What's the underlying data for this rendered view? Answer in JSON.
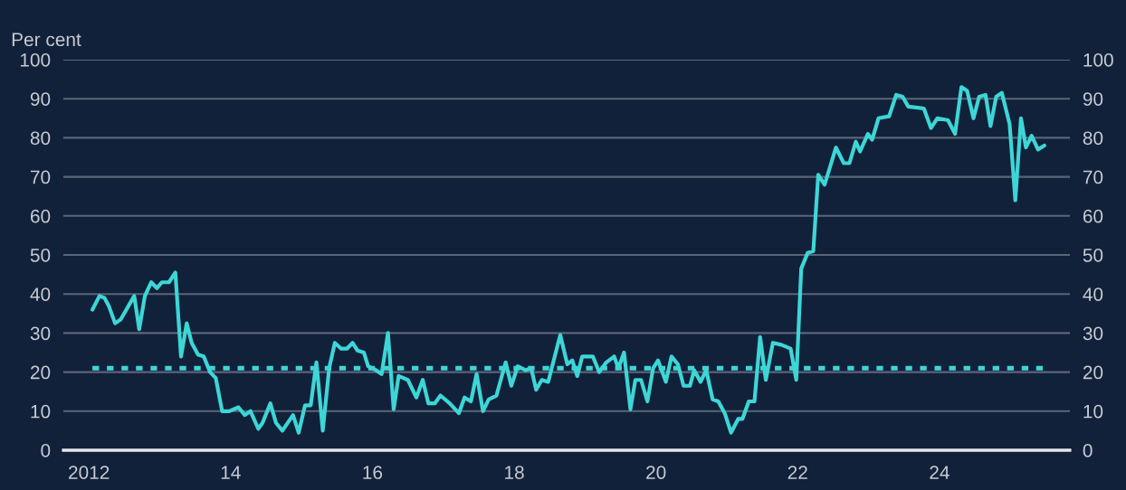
{
  "chart_data": {
    "type": "line",
    "ylabel": "Per cent",
    "xlim": [
      2011.64,
      2025.84
    ],
    "xticks": [
      {
        "value": 2012,
        "label": "2012"
      },
      {
        "value": 2014,
        "label": "14"
      },
      {
        "value": 2016,
        "label": "16"
      },
      {
        "value": 2018,
        "label": "18"
      },
      {
        "value": 2020,
        "label": "20"
      },
      {
        "value": 2022,
        "label": "22"
      },
      {
        "value": 2024,
        "label": "24"
      }
    ],
    "ylim": [
      0,
      100
    ],
    "yticks": [
      0,
      10,
      20,
      30,
      40,
      50,
      60,
      70,
      80,
      90,
      100
    ],
    "y2lim": [
      0,
      100
    ],
    "y2ticks": [
      0,
      10,
      20,
      30,
      40,
      50,
      60,
      70,
      80,
      90,
      100
    ],
    "grid": "y",
    "marker": "none",
    "line_style": "solid",
    "ref_lines": [
      {
        "axis": "y",
        "value": 21,
        "color": "#3dd6d6",
        "line_style": "dotted"
      }
    ],
    "series": [
      {
        "color": "#3dd6d6",
        "x": [
          2012.05,
          2012.15,
          2012.22,
          2012.28,
          2012.37,
          2012.45,
          2012.64,
          2012.71,
          2012.79,
          2012.88,
          2012.96,
          2013.03,
          2013.13,
          2013.22,
          2013.3,
          2013.38,
          2013.45,
          2013.54,
          2013.62,
          2013.71,
          2013.79,
          2013.88,
          2013.98,
          2014.11,
          2014.2,
          2014.28,
          2014.39,
          2014.45,
          2014.56,
          2014.64,
          2014.73,
          2014.88,
          2014.96,
          2015.05,
          2015.13,
          2015.21,
          2015.3,
          2015.39,
          2015.47,
          2015.56,
          2015.64,
          2015.72,
          2015.79,
          2015.88,
          2015.94,
          2016.05,
          2016.13,
          2016.22,
          2016.3,
          2016.37,
          2016.5,
          2016.62,
          2016.71,
          2016.79,
          2016.88,
          2016.96,
          2017.09,
          2017.22,
          2017.3,
          2017.39,
          2017.47,
          2017.56,
          2017.64,
          2017.75,
          2017.88,
          2017.96,
          2018.05,
          2018.16,
          2018.24,
          2018.31,
          2018.39,
          2018.48,
          2018.65,
          2018.75,
          2018.82,
          2018.89,
          2018.96,
          2019.11,
          2019.2,
          2019.3,
          2019.41,
          2019.47,
          2019.55,
          2019.64,
          2019.71,
          2019.79,
          2019.88,
          2019.96,
          2020.03,
          2020.14,
          2020.22,
          2020.31,
          2020.39,
          2020.48,
          2020.54,
          2020.63,
          2020.71,
          2020.8,
          2020.88,
          2020.97,
          2021.06,
          2021.16,
          2021.22,
          2021.31,
          2021.39,
          2021.47,
          2021.55,
          2021.65,
          2021.77,
          2021.9,
          2021.98,
          2022.05,
          2022.14,
          2022.22,
          2022.29,
          2022.38,
          2022.54,
          2022.65,
          2022.73,
          2022.82,
          2022.88,
          2022.99,
          2023.05,
          2023.14,
          2023.29,
          2023.39,
          2023.48,
          2023.56,
          2023.78,
          2023.88,
          2023.97,
          2024.12,
          2024.22,
          2024.31,
          2024.39,
          2024.48,
          2024.56,
          2024.65,
          2024.72,
          2024.8,
          2024.88,
          2024.99,
          2025.07,
          2025.15,
          2025.22,
          2025.3,
          2025.39,
          2025.48
        ],
        "values": [
          36,
          39.5,
          39,
          37,
          32.5,
          33.5,
          39.5,
          31,
          39.5,
          43,
          41.5,
          43,
          43,
          45.5,
          24,
          32.5,
          27.5,
          24.5,
          24,
          20,
          18.5,
          10,
          10,
          11,
          9,
          10,
          5.5,
          7,
          12,
          7,
          5,
          9,
          4.5,
          11.5,
          11.5,
          22.5,
          5,
          21,
          27.5,
          26,
          26,
          27.5,
          25.5,
          25,
          21.5,
          20.5,
          19.5,
          30,
          10.5,
          19,
          18,
          13.5,
          18,
          12,
          12,
          14,
          12,
          9.5,
          13.5,
          12.5,
          19.5,
          10,
          13,
          14,
          22.5,
          16.5,
          21.5,
          20.5,
          21,
          15.5,
          18,
          17.5,
          29.5,
          22,
          23,
          19,
          24,
          24,
          20,
          22.5,
          24,
          21,
          25,
          10.5,
          18,
          18,
          12.5,
          21,
          23,
          17.5,
          24,
          22,
          16.5,
          16.5,
          20.5,
          17.5,
          20.5,
          13,
          12.5,
          9.5,
          4.5,
          8,
          8,
          12.5,
          12.5,
          29,
          18,
          27.5,
          27,
          26,
          18,
          46.5,
          50.5,
          51,
          70.5,
          68,
          77.5,
          73.5,
          73.5,
          79,
          76.5,
          81,
          79.5,
          85,
          85.5,
          91,
          90.5,
          88,
          87.5,
          82.5,
          85,
          84.5,
          81,
          93,
          92,
          85,
          90.5,
          91,
          83,
          90.5,
          91.5,
          83.5,
          64,
          85,
          77.5,
          80.5,
          77,
          78
        ]
      }
    ]
  }
}
